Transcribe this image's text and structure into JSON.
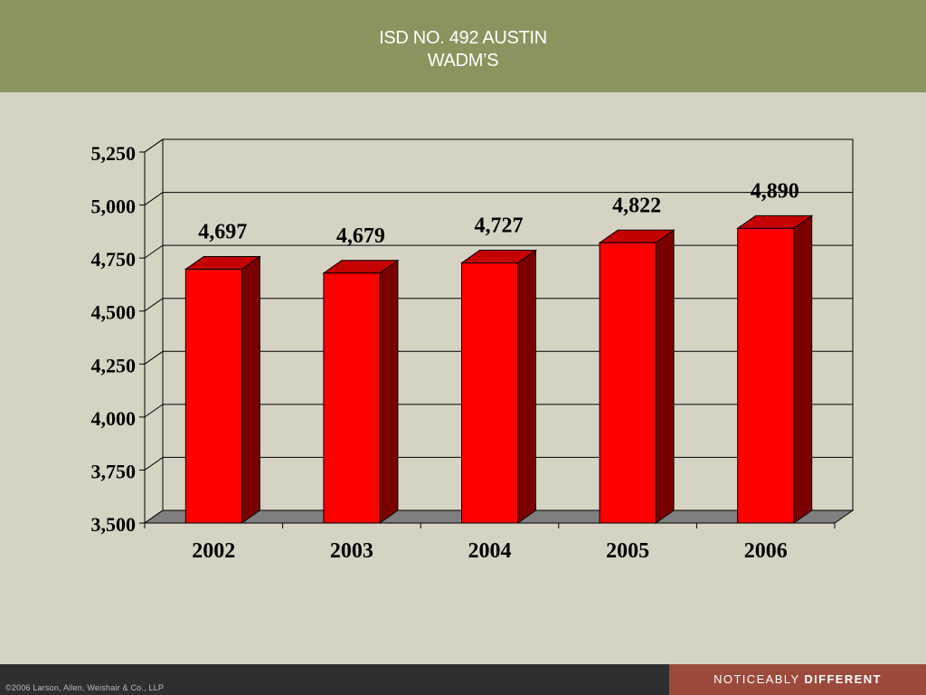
{
  "slide": {
    "title_line1": "ISD NO. 492 AUSTIN",
    "title_line2": "WADM’S"
  },
  "footer": {
    "copyright": "©2006 Larson, Allen, Weishair & Co., LLP",
    "tagline_light": "NOTICEABLY",
    "tagline_bold": "DIFFERENT",
    "tagline_color": "#9c4a3c"
  },
  "chart_data": {
    "type": "bar",
    "categories": [
      "2002",
      "2003",
      "2004",
      "2005",
      "2006"
    ],
    "values": [
      4697,
      4679,
      4727,
      4822,
      4890
    ],
    "data_labels": [
      "4,697",
      "4,679",
      "4,727",
      "4,822",
      "4,890"
    ],
    "ylim": [
      3500,
      5250
    ],
    "yticks": [
      3500,
      3750,
      4000,
      4250,
      4500,
      4750,
      5000,
      5250
    ],
    "ytick_labels": [
      "3,500",
      "3,750",
      "4,000",
      "4,250",
      "4,500",
      "4,750",
      "5,000",
      "5,250"
    ],
    "grid": true,
    "legend": "none",
    "colors": {
      "bar_front": "#ff0000",
      "bar_side": "#7a0000",
      "bar_top": "#c40000",
      "floor": "#7f7f7f",
      "plot_background": "#d6d3c3"
    }
  }
}
